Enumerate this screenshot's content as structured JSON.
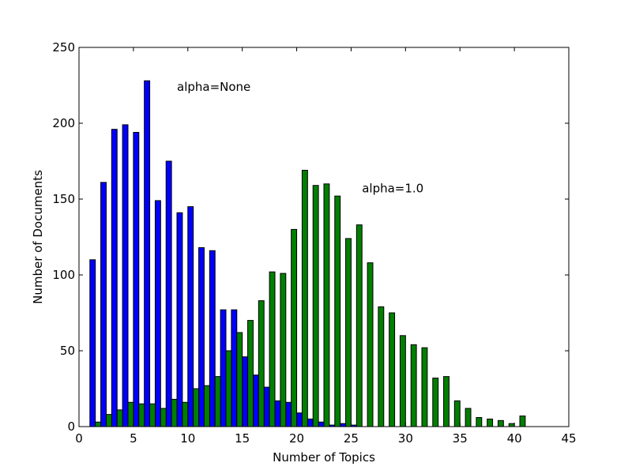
{
  "chart_data": {
    "type": "bar",
    "xlabel": "Number of Topics",
    "ylabel": "Number of Documents",
    "xlim": [
      0,
      45
    ],
    "ylim": [
      0,
      250
    ],
    "xticks": [
      0,
      5,
      10,
      15,
      20,
      25,
      30,
      35,
      40,
      45
    ],
    "yticks": [
      0,
      50,
      100,
      150,
      200,
      250
    ],
    "grid": false,
    "bar_width": 0.5,
    "series": [
      {
        "color": "#0000ff",
        "offset": 0,
        "x": [
          1,
          2,
          3,
          4,
          5,
          6,
          7,
          8,
          9,
          10,
          11,
          12,
          13,
          14,
          15,
          16,
          17,
          18,
          19,
          20,
          21,
          22,
          23,
          24,
          25
        ],
        "values": [
          110,
          161,
          196,
          199,
          194,
          228,
          149,
          175,
          141,
          145,
          118,
          116,
          77,
          77,
          46,
          34,
          26,
          17,
          16,
          9,
          5,
          3,
          1,
          2,
          1
        ]
      },
      {
        "color": "#007f00",
        "offset": 0.5,
        "x": [
          1,
          2,
          3,
          4,
          5,
          6,
          7,
          8,
          9,
          10,
          11,
          12,
          13,
          14,
          15,
          16,
          17,
          18,
          19,
          20,
          21,
          22,
          23,
          24,
          25,
          26,
          27,
          28,
          29,
          30,
          31,
          32,
          33,
          34,
          35,
          36,
          37,
          38,
          39,
          40
        ],
        "values": [
          3,
          8,
          11,
          16,
          15,
          15,
          12,
          18,
          16,
          25,
          27,
          33,
          50,
          62,
          70,
          83,
          102,
          101,
          130,
          169,
          159,
          160,
          152,
          124,
          133,
          108,
          79,
          75,
          60,
          54,
          52,
          32,
          33,
          17,
          12,
          6,
          5,
          4,
          2,
          7
        ]
      }
    ],
    "annotations": [
      {
        "text": "alpha=None",
        "x": 9,
        "y": 224
      },
      {
        "text": "alpha=1.0",
        "x": 26,
        "y": 157
      }
    ]
  }
}
